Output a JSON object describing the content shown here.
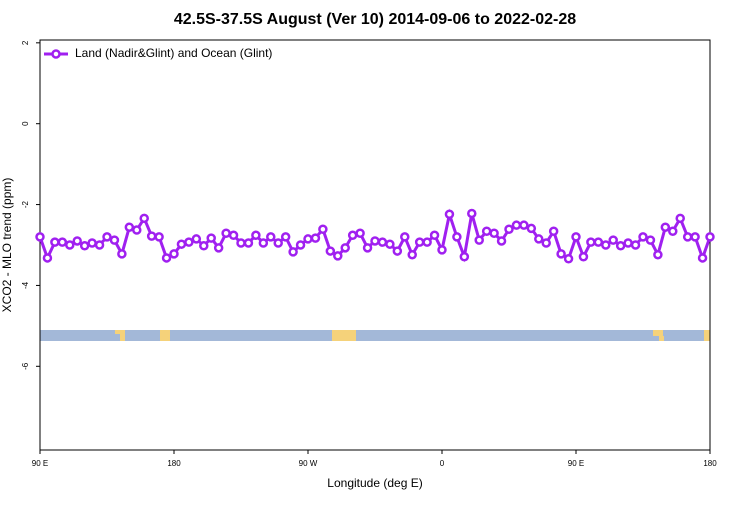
{
  "chart_data": {
    "type": "line",
    "title": "42.5S-37.5S August (Ver 10)   2014-09-06 to 2022-02-28",
    "xlabel": "Longitude (deg E)",
    "ylabel": "XCO2 - MLO trend (ppm)",
    "x": [
      90,
      95,
      100,
      105,
      110,
      115,
      120,
      125,
      130,
      135,
      140,
      145,
      150,
      155,
      160,
      165,
      170,
      175,
      180,
      185,
      190,
      195,
      200,
      205,
      210,
      215,
      220,
      225,
      230,
      235,
      240,
      245,
      250,
      255,
      260,
      265,
      270,
      275,
      280,
      285,
      290,
      295,
      300,
      305,
      310,
      315,
      320,
      325,
      330,
      335,
      340,
      345,
      350,
      355,
      360,
      365,
      370,
      375,
      380,
      385,
      390,
      395,
      400,
      405,
      410,
      415,
      420,
      425,
      430,
      435,
      440,
      445,
      450,
      455,
      460,
      465,
      470,
      475,
      480,
      485,
      490,
      495,
      500,
      505,
      510,
      515,
      520,
      525,
      530,
      535,
      540
    ],
    "series": [
      {
        "name": "Land (Nadir&Glint) and Ocean (Glint)",
        "color": "#a020f0",
        "values": [
          -2.8,
          -3.32,
          -2.93,
          -2.93,
          -3.0,
          -2.9,
          -3.02,
          -2.95,
          -3.0,
          -2.8,
          -2.88,
          -3.22,
          -2.56,
          -2.63,
          -2.34,
          -2.78,
          -2.8,
          -3.32,
          -3.22,
          -2.98,
          -2.93,
          -2.85,
          -3.02,
          -2.83,
          -3.07,
          -2.71,
          -2.76,
          -2.95,
          -2.95,
          -2.76,
          -2.95,
          -2.8,
          -2.95,
          -2.8,
          -3.17,
          -3.0,
          -2.85,
          -2.83,
          -2.61,
          -3.15,
          -3.27,
          -3.07,
          -2.76,
          -2.71,
          -3.07,
          -2.9,
          -2.93,
          -2.98,
          -3.15,
          -2.8,
          -3.24,
          -2.93,
          -2.93,
          -2.76,
          -3.12,
          -2.24,
          -2.8,
          -3.29,
          -2.22,
          -2.88,
          -2.66,
          -2.71,
          -2.9,
          -2.61,
          -2.51,
          -2.51,
          -2.59,
          -2.85,
          -2.95,
          -2.66,
          -3.22,
          -3.34,
          -2.8,
          -3.29,
          -2.93,
          -2.93,
          -3.0,
          -2.88,
          -3.02,
          -2.95,
          -3.0,
          -2.8,
          -2.88,
          -3.24,
          -2.56,
          -2.66,
          -2.34,
          -2.8,
          -2.8,
          -3.32,
          -2.8
        ]
      }
    ],
    "xlim": [
      90,
      540
    ],
    "ylim": [
      -8.07,
      2.07
    ],
    "xticks": [
      {
        "value": 90,
        "label": "90 E"
      },
      {
        "value": 180,
        "label": "180"
      },
      {
        "value": 270,
        "label": "90 W"
      },
      {
        "value": 360,
        "label": "0"
      },
      {
        "value": 450,
        "label": "90 E"
      },
      {
        "value": 540,
        "label": "180"
      }
    ],
    "yticks": [
      -6,
      -4,
      -2,
      0,
      2
    ],
    "grid": false,
    "legend": "upper left"
  }
}
